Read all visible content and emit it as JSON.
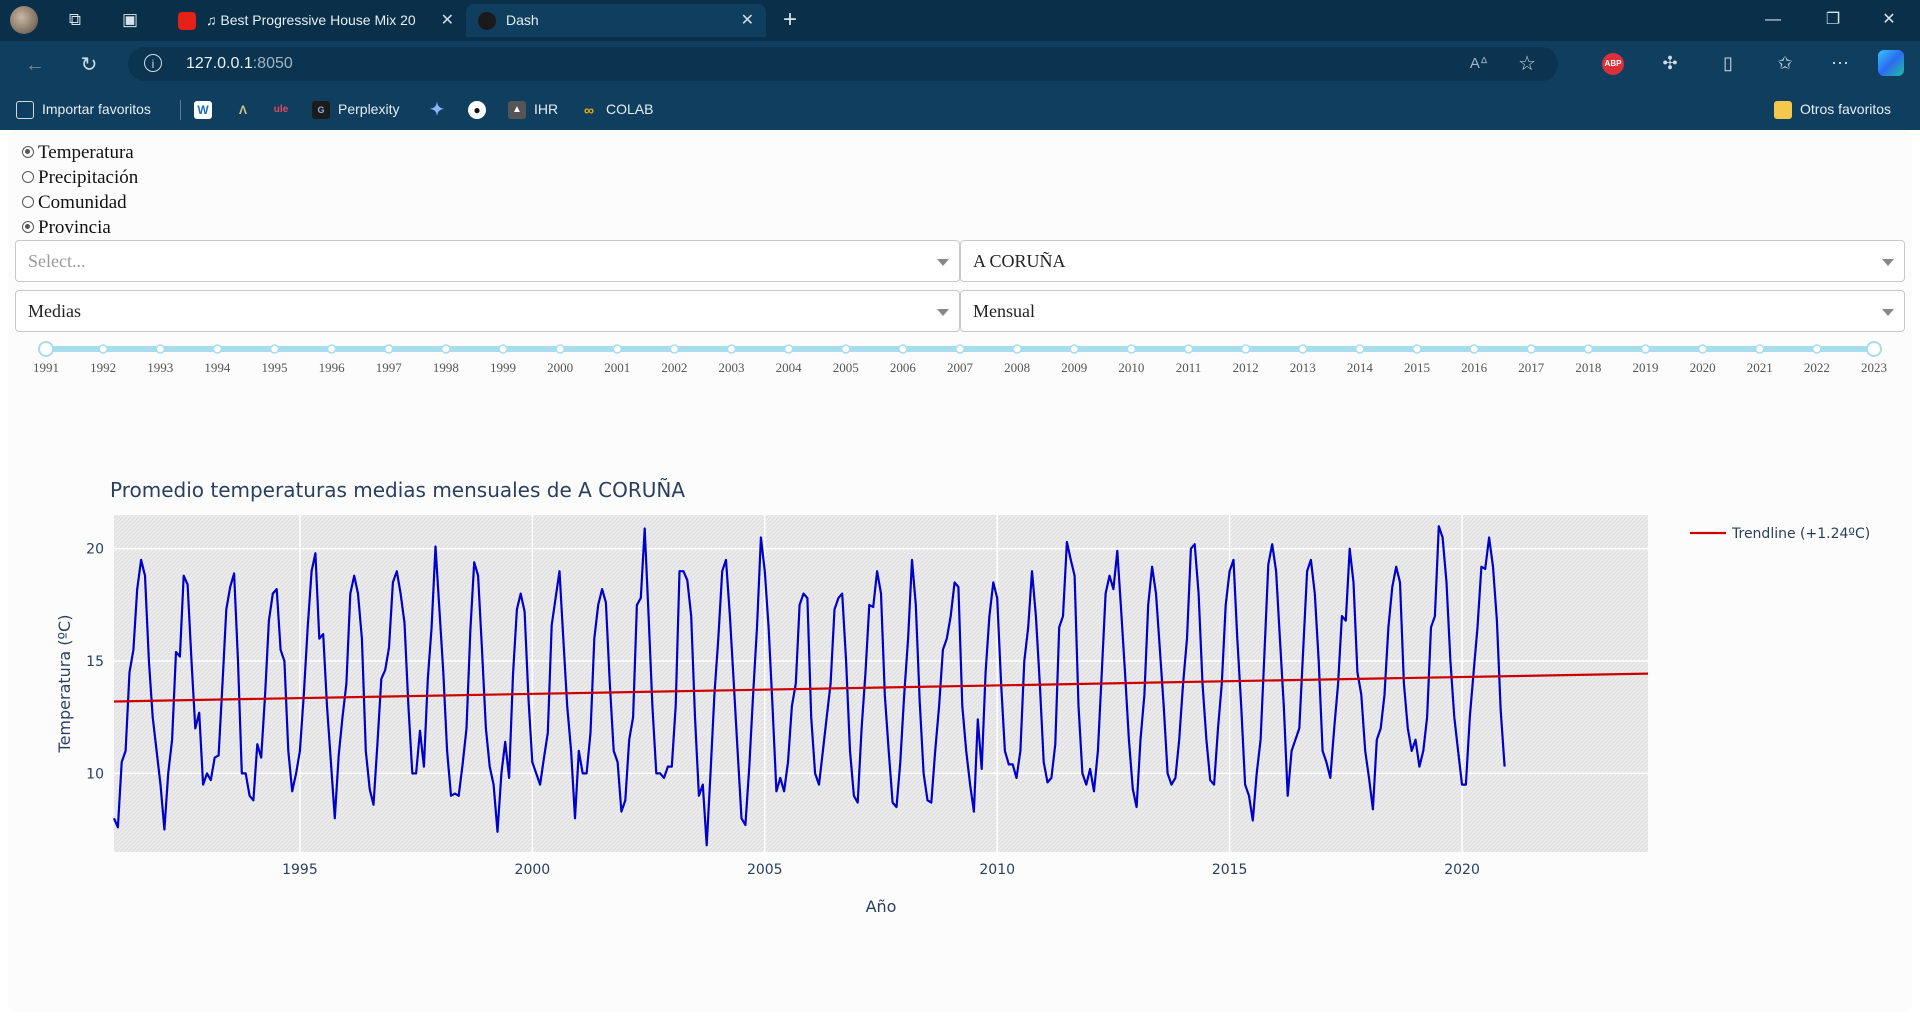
{
  "browser": {
    "tabs": [
      {
        "title": "♫ Best Progressive House Mix 20",
        "active": false
      },
      {
        "title": "Dash",
        "active": true
      }
    ],
    "url_host": "127.0.0.1",
    "url_port": ":8050",
    "bookmarks": [
      {
        "label": "Importar favoritos",
        "icon": "import-icon"
      },
      {
        "label": "",
        "icon": "w-icon"
      },
      {
        "label": "",
        "icon": "triangle-icon"
      },
      {
        "label": "",
        "icon": "ule-icon"
      },
      {
        "label": "Perplexity",
        "icon": "perplexity-icon"
      },
      {
        "label": "",
        "icon": "sparkle-icon"
      },
      {
        "label": "",
        "icon": "github-icon"
      },
      {
        "label": "IHR",
        "icon": "ihr-icon"
      },
      {
        "label": "COLAB",
        "icon": "colab-icon"
      }
    ],
    "other_favorites": "Otros favoritos",
    "abp_badge": "ABP"
  },
  "controls": {
    "radios": [
      {
        "label": "Temperatura",
        "checked": true
      },
      {
        "label": "Precipitación",
        "checked": false
      },
      {
        "label": "Comunidad",
        "checked": false
      },
      {
        "label": "Provincia",
        "checked": true
      }
    ],
    "dropdown_left_top": {
      "placeholder": "Select...",
      "value": ""
    },
    "dropdown_right_top": {
      "value": "A CORUÑA"
    },
    "dropdown_left_bottom": {
      "value": "Medias"
    },
    "dropdown_right_bottom": {
      "value": "Mensual"
    },
    "slider": {
      "marks": [
        "1991",
        "1992",
        "1993",
        "1994",
        "1995",
        "1996",
        "1997",
        "1998",
        "1999",
        "2000",
        "2001",
        "2002",
        "2003",
        "2004",
        "2005",
        "2006",
        "2007",
        "2008",
        "2009",
        "2010",
        "2011",
        "2012",
        "2013",
        "2014",
        "2015",
        "2016",
        "2017",
        "2018",
        "2019",
        "2020",
        "2021",
        "2022",
        "2023"
      ],
      "range": [
        1991,
        2023
      ],
      "color": "#a8ddee"
    }
  },
  "chart_data": {
    "type": "line",
    "title": "Promedio temperaturas medias mensuales de A CORUÑA",
    "xlabel": "Año",
    "ylabel": "Temperatura (ºC)",
    "x_ticks": [
      "1995",
      "2000",
      "2005",
      "2010",
      "2015",
      "2020"
    ],
    "y_ticks": [
      "10",
      "15",
      "20"
    ],
    "xlim": [
      1991.0,
      2024.0
    ],
    "ylim": [
      6.5,
      21.5
    ],
    "legend_position": "top-right",
    "series": [
      {
        "name": "",
        "color": "#0000cc",
        "x_start": 1991.0,
        "x_step": 0.08333,
        "values": [
          8.0,
          7.6,
          10.5,
          11.0,
          14.5,
          15.5,
          18.2,
          19.5,
          18.8,
          15.0,
          12.5,
          11.0,
          9.5,
          7.5,
          10.0,
          11.5,
          15.4,
          15.2,
          18.8,
          18.4,
          15.0,
          12.0,
          12.7,
          9.5,
          10.0,
          9.7,
          10.7,
          10.8,
          14.0,
          17.3,
          18.3,
          18.9,
          15.0,
          10.0,
          10.0,
          9.0,
          8.8,
          11.3,
          10.7,
          13.5,
          16.8,
          18.0,
          18.2,
          15.5,
          15.0,
          11.0,
          9.2,
          10.0,
          11.0,
          13.5,
          16.5,
          19.0,
          19.8,
          16.0,
          16.2,
          13.0,
          10.5,
          8.0,
          10.8,
          12.5,
          14.0,
          18.0,
          18.8,
          18.0,
          16.0,
          11.0,
          9.3,
          8.6,
          11.3,
          14.2,
          14.6,
          15.6,
          18.5,
          19.0,
          18.0,
          16.7,
          13.0,
          10.0,
          10.0,
          11.9,
          10.3,
          14.2,
          16.5,
          20.1,
          17.3,
          14.5,
          11.0,
          9.0,
          9.1,
          9.0,
          10.4,
          12.0,
          16.4,
          19.4,
          18.8,
          15.5,
          12.0,
          10.3,
          9.5,
          7.4,
          10.0,
          11.4,
          9.8,
          14.4,
          17.3,
          18.0,
          17.2,
          13.3,
          10.5,
          10.0,
          9.5,
          10.7,
          11.8,
          16.6,
          17.8,
          19.0,
          16.0,
          13.0,
          11.0,
          8.0,
          11.0,
          10.0,
          10.0,
          11.8,
          16.0,
          17.5,
          18.2,
          17.6,
          14.0,
          11.0,
          10.5,
          8.3,
          8.8,
          11.5,
          12.5,
          17.5,
          17.8,
          20.9,
          17.0,
          13.0,
          10.0,
          10.0,
          9.8,
          10.3,
          10.3,
          13.0,
          19.0,
          19.0,
          18.6,
          17.0,
          12.5,
          9.0,
          9.5,
          6.8,
          10.0,
          13.5,
          16.0,
          19.0,
          19.5,
          17.0,
          14.0,
          11.0,
          8.0,
          7.7,
          10.3,
          13.5,
          16.5,
          20.5,
          19.0,
          16.5,
          13.0,
          9.2,
          9.8,
          9.2,
          10.5,
          13.0,
          14.0,
          17.5,
          18.0,
          17.8,
          12.5,
          10.0,
          9.5,
          11.0,
          12.5,
          14.0,
          17.3,
          17.8,
          18.0,
          15.0,
          11.0,
          9.0,
          8.7,
          12.0,
          14.5,
          17.5,
          17.4,
          19.0,
          18.0,
          13.5,
          11.0,
          8.7,
          8.5,
          10.5,
          13.5,
          16.0,
          19.5,
          17.5,
          13.2,
          10.0,
          8.8,
          8.7,
          11.0,
          13.0,
          15.5,
          16.0,
          17.0,
          18.5,
          18.3,
          13.0,
          11.0,
          9.5,
          8.3,
          12.4,
          10.2,
          14.5,
          17.0,
          18.5,
          17.8,
          14.0,
          11.0,
          10.4,
          10.4,
          9.8,
          11.0,
          15.0,
          16.5,
          19.0,
          17.0,
          14.0,
          10.5,
          9.6,
          9.8,
          11.3,
          16.5,
          17.0,
          20.3,
          19.5,
          18.8,
          13.0,
          10.0,
          9.5,
          10.2,
          9.2,
          11.0,
          14.5,
          18.0,
          18.8,
          18.2,
          19.9,
          17.3,
          14.5,
          11.5,
          9.3,
          8.5,
          11.5,
          13.5,
          17.5,
          19.2,
          18.0,
          15.5,
          13.0,
          10.0,
          9.5,
          9.8,
          11.5,
          14.0,
          16.0,
          20.0,
          20.2,
          18.0,
          14.0,
          11.5,
          9.7,
          9.5,
          12.0,
          14.0,
          17.5,
          19.0,
          19.5,
          16.0,
          13.0,
          9.5,
          9.0,
          7.9,
          10.0,
          11.5,
          15.4,
          19.3,
          20.2,
          19.0,
          16.0,
          13.0,
          9.0,
          11.0,
          11.5,
          12.0,
          15.5,
          19.0,
          19.5,
          18.0,
          15.0,
          11.0,
          10.5,
          9.8,
          12.0,
          14.0,
          17.0,
          16.8,
          20.0,
          18.5,
          14.5,
          13.5,
          11.0,
          9.8,
          8.4,
          11.5,
          12.0,
          13.5,
          16.5,
          18.3,
          19.2,
          18.5,
          14.0,
          12.0,
          11.0,
          11.5,
          10.3,
          11.0,
          12.5,
          16.5,
          17.0,
          21.0,
          20.5,
          18.5,
          15.0,
          12.5,
          11.0,
          9.5,
          9.5,
          12.5,
          14.5,
          16.5,
          19.2,
          19.1,
          20.5,
          19.2,
          16.8,
          12.8,
          10.3
        ]
      },
      {
        "name": "Trendline (+1.24ºC)",
        "color": "#cc0000",
        "x": [
          1991.0,
          2024.0
        ],
        "values": [
          13.2,
          14.44
        ]
      }
    ]
  }
}
